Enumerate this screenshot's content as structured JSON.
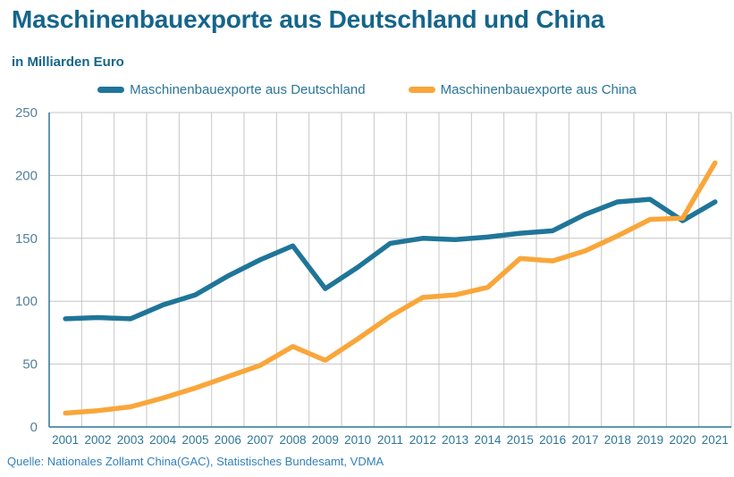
{
  "header": {
    "title": "Maschinenbauexporte aus Deutschland und China",
    "subtitle": "in Milliarden Euro"
  },
  "legend": [
    {
      "label": "Maschinenbauexporte aus Deutschland",
      "color": "#1f7599"
    },
    {
      "label": "Maschinenbauexporte aus China",
      "color": "#f9a63a"
    }
  ],
  "chart_data": {
    "type": "line",
    "title": "Maschinenbauexporte aus Deutschland und China",
    "ylabel": "in Milliarden Euro",
    "categories": [
      2001,
      2002,
      2003,
      2004,
      2005,
      2006,
      2007,
      2008,
      2009,
      2010,
      2011,
      2012,
      2013,
      2014,
      2015,
      2016,
      2017,
      2018,
      2019,
      2020,
      2021
    ],
    "series": [
      {
        "name": "Maschinenbauexporte aus Deutschland",
        "color": "#1f7599",
        "values": [
          86,
          87,
          86,
          97,
          105,
          120,
          133,
          144,
          110,
          127,
          146,
          150,
          149,
          151,
          154,
          156,
          169,
          179,
          181,
          164,
          179
        ]
      },
      {
        "name": "Maschinenbauexporte aus China",
        "color": "#f9a63a",
        "values": [
          11,
          13,
          16,
          23,
          31,
          40,
          49,
          64,
          53,
          70,
          88,
          103,
          105,
          111,
          134,
          132,
          140,
          152,
          165,
          166,
          210
        ]
      }
    ],
    "ylim": [
      0,
      250
    ],
    "yticks": [
      0,
      50,
      100,
      150,
      200,
      250
    ],
    "grid": true,
    "legend_position": "top",
    "colors": {
      "grid": "#c6c6c6",
      "axis": "#2d7596",
      "ytick": "#54809b",
      "xtick": "#2e7697"
    }
  },
  "source": {
    "text": "Quelle: Nationales Zollamt China(GAC), Statistisches Bundesamt, VDMA"
  }
}
